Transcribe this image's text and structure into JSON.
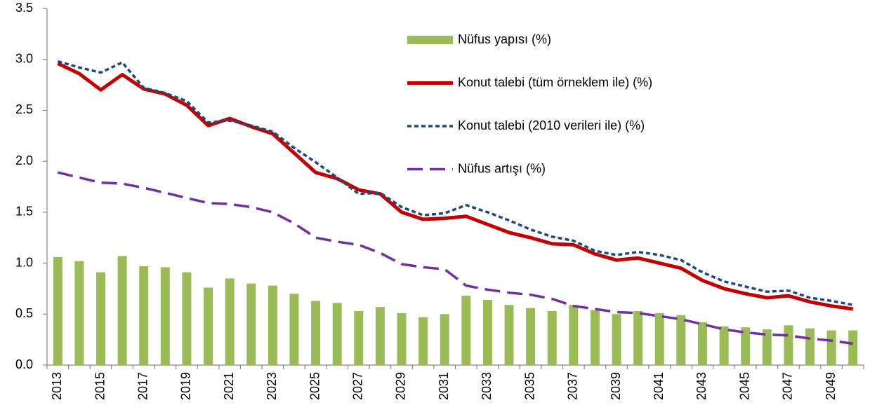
{
  "chart_data": {
    "type": "bar-line",
    "categories": [
      "2013",
      null,
      "2015",
      null,
      "2017",
      null,
      "2019",
      null,
      "2021",
      null,
      "2023",
      null,
      "2025",
      null,
      "2027",
      null,
      "2029",
      null,
      "2031",
      null,
      "2033",
      null,
      "2035",
      null,
      "2037",
      null,
      "2039",
      null,
      "2041",
      null,
      "2043",
      null,
      "2045",
      null,
      "2047",
      null,
      "2049",
      null
    ],
    "series": [
      {
        "name": "Nüfus yapısı (%)",
        "type": "bar",
        "color": "#9bbb59",
        "values": [
          1.06,
          1.02,
          0.91,
          1.07,
          0.97,
          0.96,
          0.91,
          0.76,
          0.85,
          0.8,
          0.78,
          0.7,
          0.63,
          0.61,
          0.53,
          0.57,
          0.51,
          0.47,
          0.5,
          0.68,
          0.64,
          0.59,
          0.56,
          0.53,
          0.59,
          0.54,
          0.5,
          0.53,
          0.51,
          0.49,
          0.42,
          0.38,
          0.37,
          0.35,
          0.39,
          0.36,
          0.34,
          0.34
        ]
      },
      {
        "name": " Konut talebi (tüm örneklem ile) (%)",
        "type": "line",
        "dash": "solid",
        "color": "#c00000",
        "values": [
          2.96,
          2.86,
          2.7,
          2.85,
          2.71,
          2.66,
          2.55,
          2.35,
          2.42,
          2.34,
          2.27,
          2.08,
          1.89,
          1.83,
          1.72,
          1.68,
          1.5,
          1.43,
          1.44,
          1.46,
          1.38,
          1.3,
          1.25,
          1.19,
          1.18,
          1.09,
          1.03,
          1.05,
          1.0,
          0.95,
          0.83,
          0.75,
          0.7,
          0.66,
          0.68,
          0.62,
          0.58,
          0.55
        ]
      },
      {
        "name": "Konut talebi (2010 verileri ile) (%)",
        "type": "line",
        "dash": "dotted",
        "color": "#1f497d",
        "values": [
          2.98,
          2.92,
          2.87,
          2.97,
          2.72,
          2.67,
          2.59,
          2.38,
          2.4,
          2.35,
          2.29,
          2.13,
          1.99,
          1.84,
          1.68,
          1.69,
          1.55,
          1.47,
          1.49,
          1.57,
          1.5,
          1.42,
          1.33,
          1.26,
          1.22,
          1.12,
          1.08,
          1.11,
          1.08,
          1.03,
          0.91,
          0.82,
          0.77,
          0.72,
          0.73,
          0.66,
          0.63,
          0.59
        ]
      },
      {
        "name": "Nüfus artışı (%)",
        "type": "line",
        "dash": "dashed",
        "color": "#7030a0",
        "values": [
          1.89,
          1.84,
          1.79,
          1.78,
          1.74,
          1.69,
          1.64,
          1.59,
          1.58,
          1.55,
          1.5,
          1.39,
          1.25,
          1.21,
          1.18,
          1.1,
          0.99,
          0.96,
          0.94,
          0.78,
          0.74,
          0.71,
          0.69,
          0.65,
          0.58,
          0.55,
          0.52,
          0.51,
          0.48,
          0.45,
          0.4,
          0.35,
          0.32,
          0.3,
          0.29,
          0.26,
          0.24,
          0.21
        ]
      }
    ],
    "ylim": [
      0,
      3.5
    ],
    "yticks": [
      {
        "value": 0,
        "label": "0.0"
      },
      0.5,
      {
        "value": 1,
        "label": "1.0"
      },
      1.5,
      {
        "value": 2,
        "label": "2.0"
      },
      2.5,
      {
        "value": 3,
        "label": "3.0"
      },
      3.5
    ],
    "legend": "upper right"
  }
}
